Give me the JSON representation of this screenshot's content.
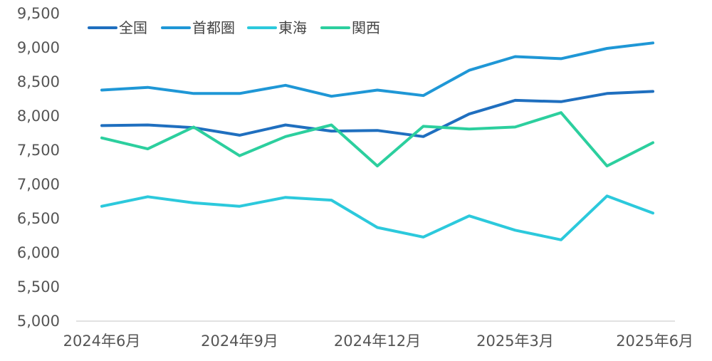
{
  "chart_data": {
    "type": "line",
    "title": "",
    "xlabel": "",
    "ylabel": "",
    "ylim": [
      5000,
      9500
    ],
    "yticks": [
      "5,000",
      "5,500",
      "6,000",
      "6,500",
      "7,000",
      "7,500",
      "8,000",
      "8,500",
      "9,000",
      "9,500"
    ],
    "ytick_values": [
      5000,
      5500,
      6000,
      6500,
      7000,
      7500,
      8000,
      8500,
      9000,
      9500
    ],
    "x": [
      "2024-06",
      "2024-07",
      "2024-08",
      "2024-09",
      "2024-10",
      "2024-11",
      "2024-12",
      "2025-01",
      "2025-02",
      "2025-03",
      "2025-04",
      "2025-05",
      "2025-06"
    ],
    "xtick_labels": [
      {
        "index": 0,
        "label": "2024年6月"
      },
      {
        "index": 3,
        "label": "2024年9月"
      },
      {
        "index": 6,
        "label": "2024年12月"
      },
      {
        "index": 9,
        "label": "2025年3月"
      },
      {
        "index": 12,
        "label": "2025年6月"
      }
    ],
    "grid": false,
    "legend": "top-left",
    "series": [
      {
        "name": "全国",
        "color": "#1f6fbf",
        "values": [
          7860,
          7870,
          7830,
          7720,
          7870,
          7780,
          7790,
          7700,
          8030,
          8230,
          8210,
          8330,
          8360
        ]
      },
      {
        "name": "首都圏",
        "color": "#1f97d6",
        "values": [
          8380,
          8420,
          8330,
          8330,
          8450,
          8290,
          8380,
          8300,
          8670,
          8870,
          8840,
          8990,
          9070
        ]
      },
      {
        "name": "東海",
        "color": "#2cc9dc",
        "values": [
          6680,
          6820,
          6730,
          6680,
          6810,
          6770,
          6370,
          6230,
          6540,
          6330,
          6190,
          6830,
          6580
        ]
      },
      {
        "name": "関西",
        "color": "#2ccf9e",
        "values": [
          7680,
          7520,
          7840,
          7420,
          7700,
          7870,
          7270,
          7850,
          7810,
          7840,
          8050,
          7270,
          7610
        ]
      }
    ]
  }
}
